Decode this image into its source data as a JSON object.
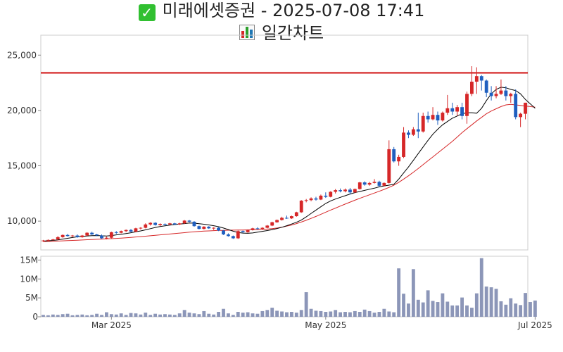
{
  "header": {
    "stock_name": "미래에셋증권",
    "separator": "-",
    "timestamp": "2025-07-08 17:41",
    "subtitle": "일간차트"
  },
  "icons": {
    "check": "check-mark-icon",
    "chart": "bar-chart-icon"
  },
  "colors": {
    "up": "#d62728",
    "down": "#1f5fbf",
    "ma_short": "#000000",
    "ma_long": "#d62728",
    "resistance": "#d01010",
    "volume": "#8c96b8"
  },
  "chart_data": {
    "type": "candlestick",
    "price_axis": {
      "ylim": [
        7400,
        26800
      ],
      "ticks": [
        10000,
        15000,
        20000,
        25000
      ],
      "tick_labels": [
        "10,000",
        "15,000",
        "20,000",
        "25,000"
      ]
    },
    "volume_axis": {
      "ylim": [
        0,
        16000000
      ],
      "ticks": [
        0,
        5000000,
        10000000,
        15000000
      ],
      "tick_labels": [
        "0",
        "5M",
        "10M",
        "15M"
      ]
    },
    "x_tick_labels": [
      {
        "index": 14,
        "label": "Mar 2025"
      },
      {
        "index": 58,
        "label": "May 2025"
      },
      {
        "index": 101,
        "label": "Jul 2025"
      }
    ],
    "horizontal_line": 23400,
    "candles": [
      {
        "o": 8200,
        "h": 8300,
        "l": 8150,
        "c": 8250
      },
      {
        "o": 8250,
        "h": 8350,
        "l": 8200,
        "c": 8300
      },
      {
        "o": 8300,
        "h": 8400,
        "l": 8250,
        "c": 8350
      },
      {
        "o": 8350,
        "h": 8650,
        "l": 8300,
        "c": 8550
      },
      {
        "o": 8550,
        "h": 8800,
        "l": 8500,
        "c": 8750
      },
      {
        "o": 8750,
        "h": 8850,
        "l": 8600,
        "c": 8650
      },
      {
        "o": 8650,
        "h": 8750,
        "l": 8550,
        "c": 8700
      },
      {
        "o": 8700,
        "h": 8800,
        "l": 8500,
        "c": 8550
      },
      {
        "o": 8550,
        "h": 8750,
        "l": 8500,
        "c": 8700
      },
      {
        "o": 8700,
        "h": 9000,
        "l": 8650,
        "c": 8950
      },
      {
        "o": 8950,
        "h": 9050,
        "l": 8750,
        "c": 8800
      },
      {
        "o": 8800,
        "h": 8850,
        "l": 8650,
        "c": 8700
      },
      {
        "o": 8700,
        "h": 8800,
        "l": 8400,
        "c": 8450
      },
      {
        "o": 8450,
        "h": 8600,
        "l": 8350,
        "c": 8500
      },
      {
        "o": 8500,
        "h": 9050,
        "l": 8450,
        "c": 9000
      },
      {
        "o": 9000,
        "h": 9100,
        "l": 8850,
        "c": 8950
      },
      {
        "o": 8950,
        "h": 9150,
        "l": 8900,
        "c": 9100
      },
      {
        "o": 9100,
        "h": 9250,
        "l": 9000,
        "c": 9200
      },
      {
        "o": 9200,
        "h": 9300,
        "l": 9000,
        "c": 9050
      },
      {
        "o": 9050,
        "h": 9400,
        "l": 9000,
        "c": 9350
      },
      {
        "o": 9350,
        "h": 9450,
        "l": 9250,
        "c": 9400
      },
      {
        "o": 9400,
        "h": 9800,
        "l": 9350,
        "c": 9700
      },
      {
        "o": 9700,
        "h": 9900,
        "l": 9600,
        "c": 9850
      },
      {
        "o": 9850,
        "h": 9900,
        "l": 9600,
        "c": 9650
      },
      {
        "o": 9650,
        "h": 9800,
        "l": 9550,
        "c": 9750
      },
      {
        "o": 9750,
        "h": 9800,
        "l": 9600,
        "c": 9700
      },
      {
        "o": 9700,
        "h": 9850,
        "l": 9650,
        "c": 9800
      },
      {
        "o": 9800,
        "h": 9850,
        "l": 9650,
        "c": 9700
      },
      {
        "o": 9700,
        "h": 9850,
        "l": 9650,
        "c": 9800
      },
      {
        "o": 9800,
        "h": 10100,
        "l": 9750,
        "c": 10050
      },
      {
        "o": 10050,
        "h": 10100,
        "l": 9900,
        "c": 9950
      },
      {
        "o": 9950,
        "h": 10000,
        "l": 9500,
        "c": 9550
      },
      {
        "o": 9550,
        "h": 9600,
        "l": 9250,
        "c": 9300
      },
      {
        "o": 9300,
        "h": 9550,
        "l": 9250,
        "c": 9500
      },
      {
        "o": 9500,
        "h": 9550,
        "l": 9300,
        "c": 9350
      },
      {
        "o": 9350,
        "h": 9450,
        "l": 9200,
        "c": 9400
      },
      {
        "o": 9400,
        "h": 9450,
        "l": 9100,
        "c": 9150
      },
      {
        "o": 9150,
        "h": 9200,
        "l": 8750,
        "c": 8800
      },
      {
        "o": 8800,
        "h": 8900,
        "l": 8600,
        "c": 8650
      },
      {
        "o": 8650,
        "h": 8700,
        "l": 8400,
        "c": 8450
      },
      {
        "o": 8450,
        "h": 9150,
        "l": 8400,
        "c": 9100
      },
      {
        "o": 9100,
        "h": 9150,
        "l": 8950,
        "c": 9000
      },
      {
        "o": 9000,
        "h": 9250,
        "l": 8950,
        "c": 9200
      },
      {
        "o": 9200,
        "h": 9400,
        "l": 9150,
        "c": 9350
      },
      {
        "o": 9350,
        "h": 9450,
        "l": 9250,
        "c": 9300
      },
      {
        "o": 9300,
        "h": 9450,
        "l": 9200,
        "c": 9400
      },
      {
        "o": 9400,
        "h": 9650,
        "l": 9350,
        "c": 9600
      },
      {
        "o": 9600,
        "h": 9950,
        "l": 9550,
        "c": 9900
      },
      {
        "o": 9900,
        "h": 10150,
        "l": 9850,
        "c": 10100
      },
      {
        "o": 10100,
        "h": 10400,
        "l": 10050,
        "c": 10300
      },
      {
        "o": 10300,
        "h": 10500,
        "l": 10200,
        "c": 10250
      },
      {
        "o": 10250,
        "h": 10500,
        "l": 10200,
        "c": 10450
      },
      {
        "o": 10450,
        "h": 10850,
        "l": 10400,
        "c": 10800
      },
      {
        "o": 10800,
        "h": 11900,
        "l": 10750,
        "c": 11850
      },
      {
        "o": 11850,
        "h": 12000,
        "l": 11700,
        "c": 11900
      },
      {
        "o": 11900,
        "h": 12150,
        "l": 11800,
        "c": 12050
      },
      {
        "o": 12050,
        "h": 12200,
        "l": 11850,
        "c": 11950
      },
      {
        "o": 11950,
        "h": 12400,
        "l": 11900,
        "c": 12300
      },
      {
        "o": 12300,
        "h": 12600,
        "l": 12100,
        "c": 12200
      },
      {
        "o": 12200,
        "h": 12700,
        "l": 12150,
        "c": 12650
      },
      {
        "o": 12650,
        "h": 12900,
        "l": 12500,
        "c": 12800
      },
      {
        "o": 12800,
        "h": 12950,
        "l": 12600,
        "c": 12700
      },
      {
        "o": 12700,
        "h": 12950,
        "l": 12600,
        "c": 12850
      },
      {
        "o": 12850,
        "h": 13000,
        "l": 12400,
        "c": 12600
      },
      {
        "o": 12600,
        "h": 12950,
        "l": 12550,
        "c": 12900
      },
      {
        "o": 12900,
        "h": 13550,
        "l": 12850,
        "c": 13500
      },
      {
        "o": 13500,
        "h": 13600,
        "l": 13200,
        "c": 13300
      },
      {
        "o": 13300,
        "h": 13550,
        "l": 13200,
        "c": 13450
      },
      {
        "o": 13450,
        "h": 13800,
        "l": 13400,
        "c": 13550
      },
      {
        "o": 13550,
        "h": 13650,
        "l": 13100,
        "c": 13200
      },
      {
        "o": 13200,
        "h": 13500,
        "l": 13150,
        "c": 13450
      },
      {
        "o": 13450,
        "h": 17300,
        "l": 13400,
        "c": 16500
      },
      {
        "o": 16500,
        "h": 16700,
        "l": 15300,
        "c": 15400
      },
      {
        "o": 15400,
        "h": 16000,
        "l": 15000,
        "c": 15800
      },
      {
        "o": 15800,
        "h": 18500,
        "l": 15700,
        "c": 18000
      },
      {
        "o": 18000,
        "h": 18200,
        "l": 17500,
        "c": 17800
      },
      {
        "o": 17800,
        "h": 18500,
        "l": 17700,
        "c": 18300
      },
      {
        "o": 18300,
        "h": 19800,
        "l": 17500,
        "c": 18100
      },
      {
        "o": 18100,
        "h": 19800,
        "l": 18000,
        "c": 19500
      },
      {
        "o": 19500,
        "h": 19900,
        "l": 18900,
        "c": 19200
      },
      {
        "o": 19200,
        "h": 20300,
        "l": 19100,
        "c": 19600
      },
      {
        "o": 19600,
        "h": 19900,
        "l": 18700,
        "c": 19100
      },
      {
        "o": 19100,
        "h": 19900,
        "l": 19000,
        "c": 19800
      },
      {
        "o": 19800,
        "h": 21400,
        "l": 19600,
        "c": 20200
      },
      {
        "o": 20200,
        "h": 20700,
        "l": 19600,
        "c": 19900
      },
      {
        "o": 19900,
        "h": 20500,
        "l": 19500,
        "c": 20300
      },
      {
        "o": 20300,
        "h": 20700,
        "l": 19200,
        "c": 19500
      },
      {
        "o": 19500,
        "h": 21700,
        "l": 18800,
        "c": 21500
      },
      {
        "o": 21500,
        "h": 24000,
        "l": 21300,
        "c": 22600
      },
      {
        "o": 22600,
        "h": 23900,
        "l": 21500,
        "c": 23100
      },
      {
        "o": 23100,
        "h": 23200,
        "l": 21800,
        "c": 22700
      },
      {
        "o": 22700,
        "h": 22800,
        "l": 21200,
        "c": 21600
      },
      {
        "o": 21600,
        "h": 22200,
        "l": 20900,
        "c": 21300
      },
      {
        "o": 21300,
        "h": 22200,
        "l": 21100,
        "c": 21500
      },
      {
        "o": 21500,
        "h": 22800,
        "l": 21400,
        "c": 21800
      },
      {
        "o": 21800,
        "h": 22200,
        "l": 20900,
        "c": 21300
      },
      {
        "o": 21300,
        "h": 21600,
        "l": 20700,
        "c": 21500
      },
      {
        "o": 21500,
        "h": 21900,
        "l": 19200,
        "c": 19400
      },
      {
        "o": 19400,
        "h": 19800,
        "l": 18500,
        "c": 19700
      },
      {
        "o": 19700,
        "h": 20700,
        "l": 19200,
        "c": 20700
      }
    ],
    "volume": [
      0.5,
      0.4,
      0.6,
      0.5,
      0.7,
      0.8,
      0.4,
      0.5,
      0.6,
      0.4,
      0.5,
      0.8,
      0.5,
      1.2,
      0.7,
      0.6,
      0.9,
      0.5,
      1.0,
      0.9,
      0.6,
      1.1,
      0.5,
      0.8,
      0.6,
      0.7,
      0.6,
      0.5,
      0.9,
      1.8,
      1.1,
      0.9,
      0.7,
      1.5,
      0.8,
      0.6,
      1.3,
      2.1,
      0.9,
      0.5,
      1.3,
      1.1,
      1.2,
      0.9,
      0.8,
      1.5,
      1.8,
      2.4,
      1.6,
      1.4,
      1.2,
      1.3,
      1.1,
      1.8,
      6.5,
      2.1,
      1.6,
      1.5,
      1.3,
      1.4,
      1.8,
      1.2,
      1.3,
      1.2,
      1.5,
      1.3,
      1.9,
      1.5,
      1.1,
      1.3,
      2.1,
      1.4,
      1.2,
      12.8,
      6.1,
      3.5,
      12.6,
      4.5,
      3.8,
      7.0,
      4.2,
      3.9,
      6.2,
      4.0,
      3.0,
      3.0,
      5.1,
      3.0,
      2.4,
      6.2,
      15.5,
      8.0,
      7.8,
      7.4,
      4.1,
      3.2,
      4.9,
      3.5,
      3.1,
      6.3,
      3.9,
      4.3
    ],
    "ma_short": [
      8200,
      8230,
      8260,
      8310,
      8380,
      8450,
      8520,
      8580,
      8630,
      8660,
      8690,
      8700,
      8680,
      8660,
      8700,
      8760,
      8820,
      8880,
      8950,
      9040,
      9120,
      9210,
      9320,
      9430,
      9520,
      9580,
      9640,
      9690,
      9740,
      9780,
      9830,
      9820,
      9770,
      9720,
      9660,
      9590,
      9500,
      9380,
      9240,
      9090,
      8980,
      8920,
      8900,
      8930,
      9000,
      9080,
      9150,
      9230,
      9330,
      9450,
      9590,
      9740,
      9900,
      10100,
      10380,
      10700,
      11000,
      11300,
      11600,
      11830,
      12000,
      12150,
      12300,
      12450,
      12580,
      12680,
      12780,
      12880,
      12980,
      13100,
      13180,
      13250,
      13330,
      13800,
      14350,
      14900,
      15500,
      16100,
      16700,
      17300,
      17850,
      18300,
      18700,
      19000,
      19300,
      19500,
      19700,
      19800,
      19800,
      19750,
      20200,
      20900,
      21500,
      21900,
      22100,
      22050,
      21900,
      21800,
      21500,
      21000,
      20600,
      20200
    ],
    "ma_long": [
      8150,
      8160,
      8180,
      8200,
      8220,
      8240,
      8260,
      8280,
      8300,
      8320,
      8340,
      8360,
      8380,
      8400,
      8420,
      8440,
      8470,
      8500,
      8530,
      8570,
      8600,
      8640,
      8680,
      8720,
      8760,
      8800,
      8840,
      8880,
      8920,
      8960,
      9000,
      9040,
      9070,
      9100,
      9120,
      9140,
      9160,
      9170,
      9180,
      9190,
      9195,
      9200,
      9210,
      9220,
      9230,
      9250,
      9280,
      9320,
      9380,
      9450,
      9550,
      9650,
      9780,
      9920,
      10080,
      10250,
      10430,
      10620,
      10810,
      11000,
      11180,
      11360,
      11540,
      11720,
      11890,
      12060,
      12220,
      12380,
      12540,
      12700,
      12870,
      13050,
      13250,
      13500,
      13800,
      14100,
      14420,
      14750,
      15100,
      15450,
      15800,
      16150,
      16500,
      16850,
      17200,
      17600,
      18000,
      18350,
      18700,
      19050,
      19380,
      19700,
      19950,
      20150,
      20350,
      20500,
      20550,
      20500,
      20450,
      20400,
      20350,
      20300
    ]
  }
}
